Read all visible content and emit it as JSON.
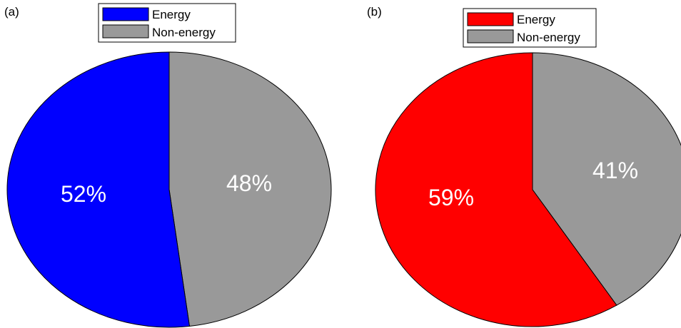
{
  "chart_data": [
    {
      "type": "pie",
      "panel_label": "(a)",
      "legend_placement": "top-center",
      "slices": [
        {
          "label": "Energy",
          "value": 52,
          "display": "52%",
          "color": "#0000ff"
        },
        {
          "label": "Non-energy",
          "value": 48,
          "display": "48%",
          "color": "#999999"
        }
      ]
    },
    {
      "type": "pie",
      "panel_label": "(b)",
      "legend_placement": "top-center",
      "slices": [
        {
          "label": "Energy",
          "value": 59,
          "display": "59%",
          "color": "#ff0000"
        },
        {
          "label": "Non-energy",
          "value": 41,
          "display": "41%",
          "color": "#999999"
        }
      ]
    }
  ]
}
